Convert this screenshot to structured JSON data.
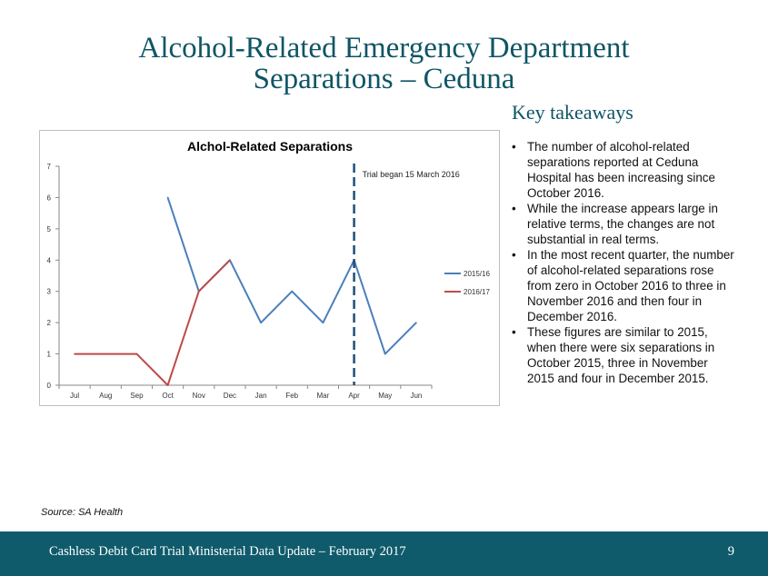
{
  "slide": {
    "title_line1": "Alcohol-Related Emergency Department",
    "title_line2": "Separations – Ceduna",
    "takeaways_heading": "Key takeaways",
    "bullets": [
      "The number of alcohol-related separations reported at Ceduna Hospital has been increasing since October 2016.",
      "While the increase appears large in relative terms, the changes are not substantial in real terms.",
      "In the most recent quarter, the number of alcohol-related separations rose from zero in October 2016 to three in November 2016 and then four in December 2016.",
      "These figures are similar to 2015, when there were six separations in October 2015, three in November 2015 and four in December 2015."
    ],
    "source": "Source: SA Health",
    "footer": "Cashless Debit Card Trial Ministerial Data Update – February 2017",
    "page_number": "9"
  },
  "colors": {
    "title": "#0e5566",
    "footer_bg": "#0f5b6b",
    "series_2015_16": "#4a7fbe",
    "series_2016_17": "#be4b48",
    "trial_line": "#1f4e79"
  },
  "chart_data": {
    "type": "line",
    "title": "Alchol-Related Separations",
    "categories": [
      "Jul",
      "Aug",
      "Sep",
      "Oct",
      "Nov",
      "Dec",
      "Jan",
      "Feb",
      "Mar",
      "Apr",
      "May",
      "Jun"
    ],
    "yticks": [
      "0",
      "1",
      "2",
      "3",
      "4",
      "5",
      "6",
      "7"
    ],
    "ylim": [
      0,
      7
    ],
    "legend_position": "right",
    "series": [
      {
        "name": "2015/16",
        "color": "#4a7fbe",
        "values": [
          null,
          null,
          null,
          6,
          3,
          4,
          2,
          3,
          2,
          4,
          1,
          2
        ]
      },
      {
        "name": "2016/17",
        "color": "#be4b48",
        "values": [
          1,
          1,
          1,
          0,
          3,
          4,
          null,
          null,
          null,
          null,
          null,
          null
        ]
      }
    ],
    "annotation": {
      "label": "Trial began 15 March 2016",
      "category": "Apr"
    }
  }
}
